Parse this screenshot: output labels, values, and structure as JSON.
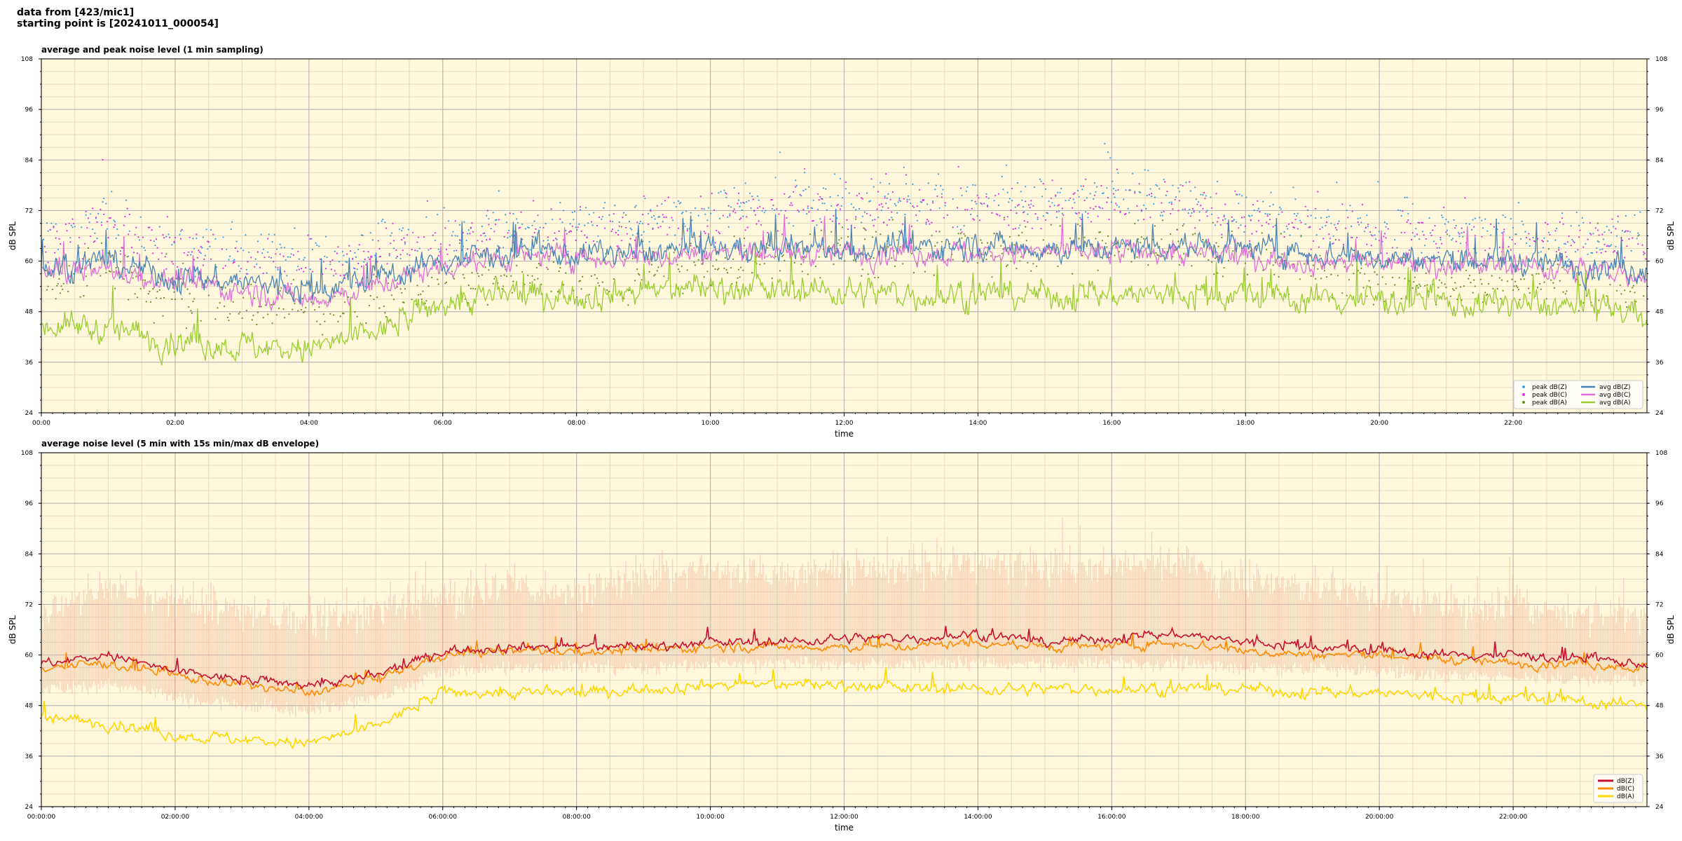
{
  "header": {
    "line1": "data from [423/mic1]",
    "line2": "starting point is [20241011_000054]"
  },
  "colors": {
    "plot_bg": "#fff8dc",
    "avg_dBZ": "#4a84b5",
    "avg_dBC": "#e070d8",
    "avg_dBA": "#9acd32",
    "peak_dBZ": "#3b9fe0",
    "peak_dBC": "#e02ee0",
    "peak_dBA": "#6b8e23",
    "dBZ_line": "#c8102e",
    "dBC_line": "#ff8c00",
    "dBA_line": "#ffd700",
    "envelope": "#f4b89a"
  },
  "chart_data": [
    {
      "type": "line",
      "title": "average and peak noise level (1 min sampling)",
      "xlabel": "time",
      "ylabel": "dB SPL",
      "ylim": [
        24,
        108
      ],
      "yticks": [
        24,
        36,
        48,
        60,
        72,
        84,
        96,
        108
      ],
      "xlim_hours": [
        0,
        24
      ],
      "xticks": [
        "00:00",
        "02:00",
        "04:00",
        "06:00",
        "08:00",
        "10:00",
        "12:00",
        "14:00",
        "16:00",
        "18:00",
        "20:00",
        "22:00"
      ],
      "grid": true,
      "legend_position": "lower-right",
      "legend": [
        "peak dB(Z)",
        "peak dB(C)",
        "peak dB(A)",
        "avg dB(Z)",
        "avg dB(C)",
        "avg dB(A)"
      ],
      "series_profile": {
        "hours": [
          0,
          1,
          2,
          3,
          4,
          5,
          6,
          7,
          8,
          9,
          10,
          11,
          12,
          13,
          14,
          15,
          16,
          17,
          18,
          19,
          20,
          21,
          22,
          23,
          24
        ],
        "avg_dBZ": [
          58,
          60,
          56,
          55,
          53,
          56,
          60,
          62,
          62,
          62,
          63,
          63,
          63,
          63,
          64,
          63,
          63,
          64,
          63,
          62,
          61,
          60,
          60,
          59,
          58
        ],
        "avg_dBC": [
          57,
          58,
          55,
          53,
          51,
          54,
          59,
          61,
          61,
          61,
          62,
          62,
          62,
          62,
          62,
          62,
          62,
          62,
          61,
          60,
          60,
          59,
          59,
          58,
          57
        ],
        "avg_dBA": [
          45,
          44,
          41,
          40,
          39,
          43,
          50,
          52,
          52,
          53,
          54,
          53,
          53,
          52,
          52,
          52,
          52,
          52,
          52,
          51,
          51,
          50,
          50,
          49,
          48
        ],
        "peak_dBZ": [
          66,
          70,
          64,
          62,
          60,
          63,
          66,
          68,
          68,
          70,
          72,
          73,
          74,
          74,
          75,
          74,
          76,
          75,
          72,
          70,
          68,
          67,
          67,
          66,
          66
        ]
      }
    },
    {
      "type": "line",
      "title": "average noise level (5 min with 15s min/max dB envelope)",
      "xlabel": "time",
      "ylabel": "dB SPL",
      "ylim": [
        24,
        108
      ],
      "yticks": [
        24,
        36,
        48,
        60,
        72,
        84,
        96,
        108
      ],
      "xlim_hours": [
        0,
        24
      ],
      "xticks": [
        "00:00:00",
        "02:00:00",
        "04:00:00",
        "06:00:00",
        "08:00:00",
        "10:00:00",
        "12:00:00",
        "14:00:00",
        "16:00:00",
        "18:00:00",
        "20:00:00",
        "22:00:00"
      ],
      "grid": true,
      "legend_position": "lower-right",
      "legend": [
        "dB(Z)",
        "dB(C)",
        "dB(A)"
      ],
      "series_profile": {
        "hours": [
          0,
          1,
          2,
          3,
          4,
          5,
          6,
          7,
          8,
          9,
          10,
          11,
          12,
          13,
          14,
          15,
          16,
          17,
          18,
          19,
          20,
          21,
          22,
          23,
          24
        ],
        "dBZ": [
          58,
          60,
          56,
          54,
          53,
          55,
          61,
          62,
          62,
          62,
          63,
          63,
          64,
          64,
          65,
          63,
          64,
          65,
          63,
          62,
          61,
          60,
          60,
          59,
          58
        ],
        "dBC": [
          57,
          58,
          55,
          53,
          51,
          54,
          60,
          61,
          61,
          61,
          62,
          62,
          62,
          62,
          63,
          62,
          62,
          63,
          61,
          60,
          60,
          59,
          58,
          58,
          57
        ],
        "dBA": [
          45,
          44,
          41,
          40,
          39,
          43,
          51,
          51,
          51,
          52,
          53,
          53,
          53,
          52,
          52,
          52,
          52,
          52,
          52,
          51,
          51,
          50,
          50,
          49,
          48
        ],
        "envelope_max": [
          70,
          76,
          72,
          70,
          68,
          70,
          74,
          76,
          76,
          78,
          80,
          80,
          80,
          80,
          82,
          80,
          82,
          82,
          78,
          76,
          74,
          72,
          72,
          70,
          70
        ],
        "envelope_min": [
          52,
          53,
          50,
          48,
          47,
          50,
          56,
          57,
          57,
          57,
          58,
          58,
          58,
          58,
          58,
          58,
          58,
          58,
          57,
          57,
          56,
          55,
          55,
          54,
          54
        ]
      }
    }
  ]
}
